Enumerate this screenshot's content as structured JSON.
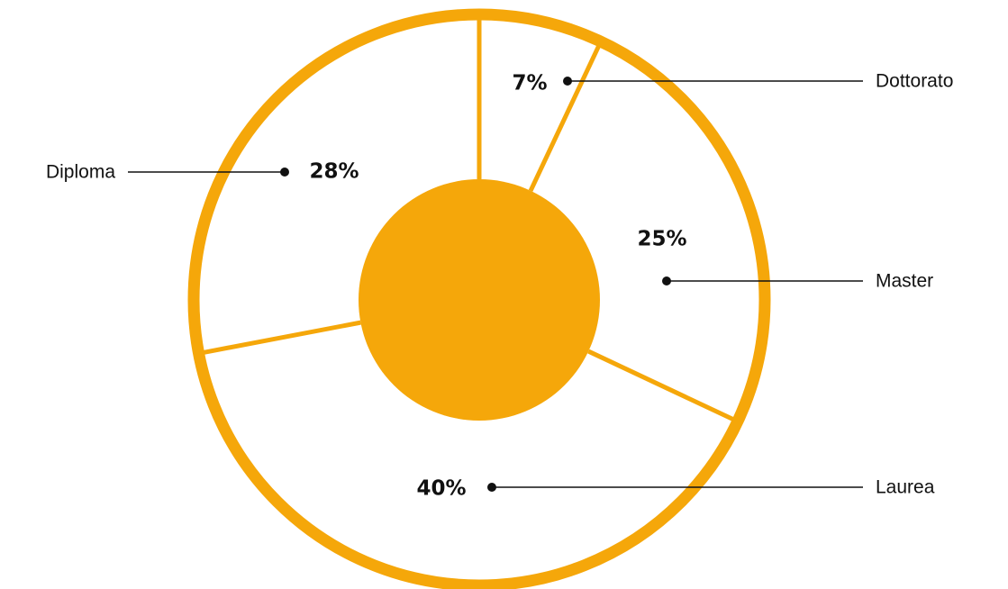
{
  "chart_data": {
    "type": "pie",
    "title": "",
    "colors": {
      "accent": "#F5A70A",
      "text": "#111111",
      "background": "#FFFFFF"
    },
    "slices": [
      {
        "label": "Dottorato",
        "value": 7,
        "value_label": "7%"
      },
      {
        "label": "Master",
        "value": 25,
        "value_label": "25%"
      },
      {
        "label": "Laurea",
        "value": 40,
        "value_label": "40%"
      },
      {
        "label": "Diploma",
        "value": 28,
        "value_label": "28%"
      }
    ],
    "legend": "callout-lines",
    "grid": false
  }
}
